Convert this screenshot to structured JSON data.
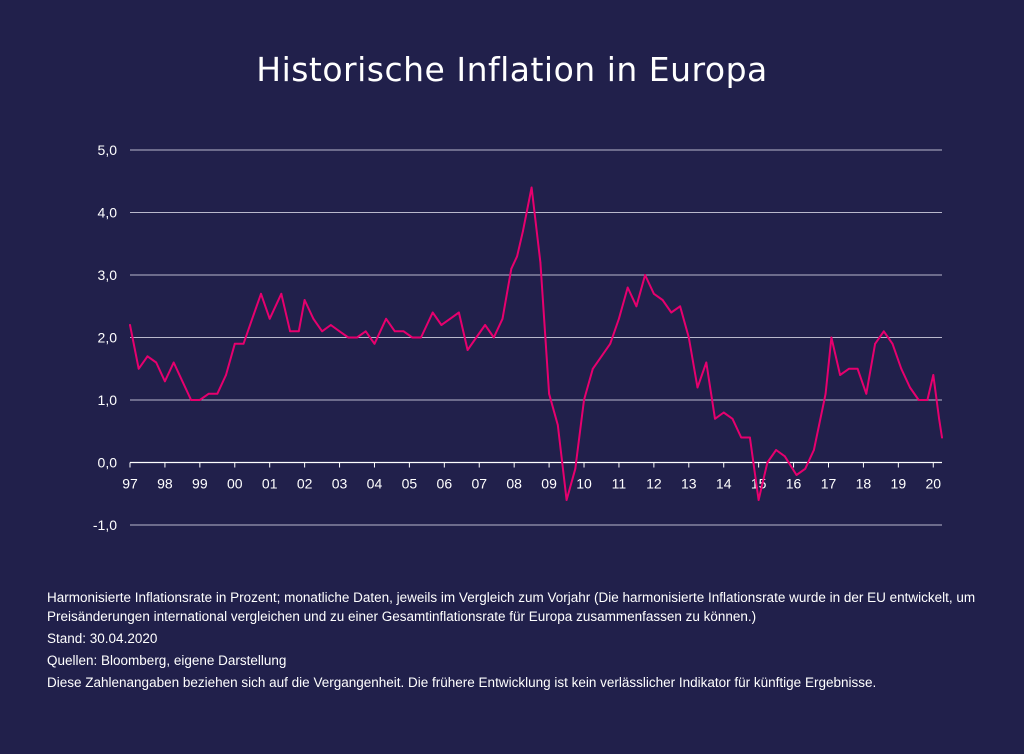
{
  "page": {
    "title": "Historische Inflation in Europa",
    "background": "#21204b",
    "line_color": "#e6006e"
  },
  "notes": {
    "description": "Harmonisierte Inflationsrate in Prozent; monatliche Daten, jeweils im Vergleich zum Vorjahr (Die harmonisierte Inflationsrate wurde in der EU entwickelt, um Preisänderungen international vergleichen und zu einer Gesamtinflationsrate für Europa zusammenfassen zu können.)",
    "date": "Stand: 30.04.2020",
    "sources": "Quellen: Bloomberg, eigene Darstellung",
    "disclaimer": "Diese Zahlenangaben beziehen sich auf die Vergangenheit. Die frühere Entwicklung ist kein verlässlicher Indikator für künftige Ergebnisse."
  },
  "chart_data": {
    "type": "line",
    "title": "Historische Inflation in Europa",
    "xlabel": "",
    "ylabel": "",
    "ylim": [
      -1.0,
      5.0
    ],
    "y_ticks": [
      "5,0",
      "4,0",
      "3,0",
      "2,0",
      "1,0",
      "0,0",
      "-1,0"
    ],
    "y_tick_values": [
      5,
      4,
      3,
      2,
      1,
      0,
      -1
    ],
    "x_ticks": [
      "97",
      "98",
      "99",
      "00",
      "01",
      "02",
      "03",
      "04",
      "05",
      "06",
      "07",
      "08",
      "09",
      "10",
      "11",
      "12",
      "13",
      "14",
      "15",
      "16",
      "17",
      "18",
      "19",
      "20"
    ],
    "x_range": [
      "1997-01",
      "2020-04"
    ],
    "grid": true,
    "legend": "none",
    "series": [
      {
        "x": [
          "1997-01",
          "1997-04",
          "1997-07",
          "1997-10",
          "1998-01",
          "1998-04",
          "1998-07",
          "1998-10",
          "1999-01",
          "1999-04",
          "1999-07",
          "1999-10",
          "2000-01",
          "2000-04",
          "2000-07",
          "2000-10",
          "2001-01",
          "2001-05",
          "2001-08",
          "2001-11",
          "2002-01",
          "2002-04",
          "2002-07",
          "2002-10",
          "2003-01",
          "2003-04",
          "2003-07",
          "2003-10",
          "2004-01",
          "2004-05",
          "2004-08",
          "2004-11",
          "2005-02",
          "2005-05",
          "2005-09",
          "2005-12",
          "2006-03",
          "2006-06",
          "2006-09",
          "2006-12",
          "2007-03",
          "2007-06",
          "2007-09",
          "2007-12",
          "2008-02",
          "2008-04",
          "2008-07",
          "2008-10",
          "2009-01",
          "2009-04",
          "2009-07",
          "2009-10",
          "2010-01",
          "2010-04",
          "2010-07",
          "2010-10",
          "2011-01",
          "2011-04",
          "2011-07",
          "2011-10",
          "2012-01",
          "2012-04",
          "2012-07",
          "2012-10",
          "2013-01",
          "2013-04",
          "2013-07",
          "2013-10",
          "2014-01",
          "2014-04",
          "2014-07",
          "2014-10",
          "2015-01",
          "2015-04",
          "2015-07",
          "2015-10",
          "2016-02",
          "2016-05",
          "2016-08",
          "2016-12",
          "2017-02",
          "2017-05",
          "2017-08",
          "2017-11",
          "2018-02",
          "2018-05",
          "2018-08",
          "2018-11",
          "2019-02",
          "2019-05",
          "2019-08",
          "2019-11",
          "2020-01",
          "2020-03",
          "2020-04"
        ],
        "values": [
          2.2,
          1.5,
          1.7,
          1.6,
          1.3,
          1.6,
          1.3,
          1.0,
          1.0,
          1.1,
          1.1,
          1.4,
          1.9,
          1.9,
          2.3,
          2.7,
          2.3,
          2.7,
          2.1,
          2.1,
          2.6,
          2.3,
          2.1,
          2.2,
          2.1,
          2.0,
          2.0,
          2.1,
          1.9,
          2.3,
          2.1,
          2.1,
          2.0,
          2.0,
          2.4,
          2.2,
          2.3,
          2.4,
          1.8,
          2.0,
          2.2,
          2.0,
          2.3,
          3.1,
          3.3,
          3.7,
          4.4,
          3.2,
          1.1,
          0.6,
          -0.6,
          -0.1,
          1.0,
          1.5,
          1.7,
          1.9,
          2.3,
          2.8,
          2.5,
          3.0,
          2.7,
          2.6,
          2.4,
          2.5,
          2.0,
          1.2,
          1.6,
          0.7,
          0.8,
          0.7,
          0.4,
          0.4,
          -0.6,
          0.0,
          0.2,
          0.1,
          -0.2,
          -0.1,
          0.2,
          1.1,
          2.0,
          1.4,
          1.5,
          1.5,
          1.1,
          1.9,
          2.1,
          1.9,
          1.5,
          1.2,
          1.0,
          1.0,
          1.4,
          0.7,
          0.4
        ]
      }
    ]
  }
}
